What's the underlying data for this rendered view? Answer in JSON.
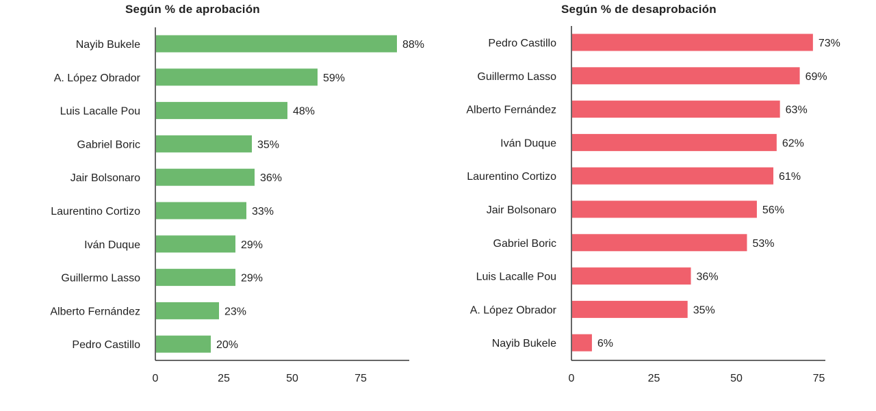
{
  "chart_data": [
    {
      "type": "bar",
      "orientation": "horizontal",
      "title": "Según % de aprobación",
      "categories": [
        "Nayib Bukele",
        "A. López Obrador",
        "Luis Lacalle Pou",
        "Gabriel Boric",
        "Jair Bolsonaro",
        "Laurentino Cortizo",
        "Iván Duque",
        "Guillermo Lasso",
        "Alberto Fernández",
        "Pedro Castillo"
      ],
      "values": [
        88,
        59,
        48,
        35,
        36,
        33,
        29,
        29,
        23,
        20
      ],
      "value_labels": [
        "88%",
        "59%",
        "48%",
        "35%",
        "36%",
        "33%",
        "29%",
        "29%",
        "23%",
        "20%"
      ],
      "xticks": [
        "0",
        "25",
        "50",
        "75"
      ],
      "xlim": [
        0,
        92
      ],
      "color": "#6db96e"
    },
    {
      "type": "bar",
      "orientation": "horizontal",
      "title": "Según % de desaprobación",
      "categories": [
        "Pedro Castillo",
        "Guillermo Lasso",
        "Alberto Fernández",
        "Iván Duque",
        "Laurentino Cortizo",
        "Jair Bolsonaro",
        "Gabriel Boric",
        "Luis Lacalle Pou",
        "A. López Obrador",
        "Nayib Bukele"
      ],
      "values": [
        73,
        69,
        63,
        62,
        61,
        56,
        53,
        36,
        35,
        6
      ],
      "value_labels": [
        "73%",
        "69%",
        "63%",
        "62%",
        "61%",
        "56%",
        "53%",
        "36%",
        "35%",
        "6%"
      ],
      "xticks": [
        "0",
        "25",
        "50",
        "75"
      ],
      "xlim": [
        0,
        77
      ],
      "color": "#f0606c"
    }
  ]
}
